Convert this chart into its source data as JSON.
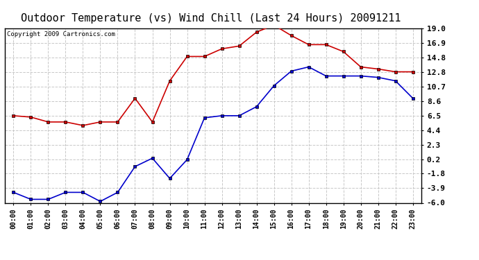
{
  "title": "Outdoor Temperature (vs) Wind Chill (Last 24 Hours) 20091211",
  "copyright": "Copyright 2009 Cartronics.com",
  "x_labels": [
    "00:00",
    "01:00",
    "02:00",
    "03:00",
    "04:00",
    "05:00",
    "06:00",
    "07:00",
    "08:00",
    "09:00",
    "10:00",
    "11:00",
    "12:00",
    "13:00",
    "14:00",
    "15:00",
    "16:00",
    "17:00",
    "18:00",
    "19:00",
    "20:00",
    "21:00",
    "22:00",
    "23:00"
  ],
  "red_data": [
    6.5,
    6.3,
    5.6,
    5.6,
    5.1,
    5.6,
    5.6,
    9.0,
    5.6,
    11.5,
    15.0,
    15.0,
    16.1,
    16.5,
    18.5,
    19.5,
    18.0,
    16.7,
    16.7,
    15.7,
    13.5,
    13.2,
    12.8,
    12.8
  ],
  "blue_data": [
    -4.5,
    -5.5,
    -5.5,
    -4.5,
    -4.5,
    -5.8,
    -4.5,
    -0.8,
    0.4,
    -2.5,
    0.2,
    6.2,
    6.5,
    6.5,
    7.8,
    10.8,
    12.9,
    13.5,
    12.2,
    12.2,
    12.2,
    12.0,
    11.5,
    9.0
  ],
  "y_ticks": [
    -6.0,
    -3.9,
    -1.8,
    0.2,
    2.3,
    4.4,
    6.5,
    8.6,
    10.7,
    12.8,
    14.8,
    16.9,
    19.0
  ],
  "ylim": [
    -6.0,
    19.0
  ],
  "red_color": "#cc0000",
  "blue_color": "#0000cc",
  "plot_bg": "#ffffff",
  "fig_bg": "#ffffff",
  "title_fontsize": 11,
  "copyright_fontsize": 6.5,
  "ytick_fontsize": 8,
  "xtick_fontsize": 7,
  "grid_color": "#c8c8c8",
  "marker_size": 3.5
}
